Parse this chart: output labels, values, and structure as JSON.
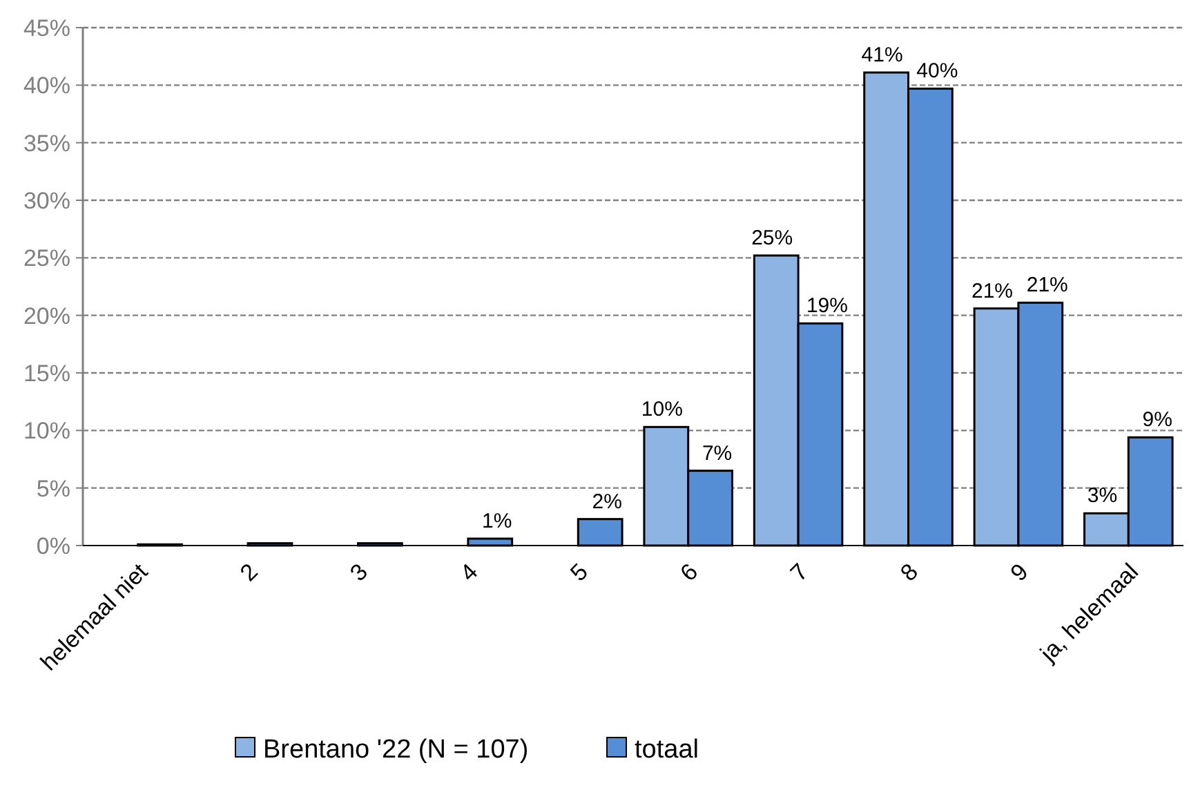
{
  "chart_data": {
    "type": "bar",
    "categories": [
      "helemaal niet",
      "2",
      "3",
      "4",
      "5",
      "6",
      "7",
      "8",
      "9",
      "ja, helemaal"
    ],
    "series": [
      {
        "name": "Brentano '22 (N = 107)",
        "color": "#8eb4e3",
        "values": [
          0,
          0,
          0,
          0,
          0,
          10.3,
          25.2,
          41.1,
          20.6,
          2.8
        ],
        "value_labels": [
          null,
          null,
          null,
          null,
          null,
          "10%",
          "25%",
          "41%",
          "21%",
          "3%"
        ]
      },
      {
        "name": "totaal",
        "color": "#558ed5",
        "values": [
          0.1,
          0.2,
          0.2,
          0.6,
          2.3,
          6.5,
          19.3,
          39.7,
          21.1,
          9.4
        ],
        "value_labels": [
          null,
          null,
          null,
          "1%",
          "2%",
          "7%",
          "19%",
          "40%",
          "21%",
          "9%"
        ]
      }
    ],
    "ylim": [
      0,
      45
    ],
    "yticks": [
      {
        "value": 0,
        "label": "0%"
      },
      {
        "value": 5,
        "label": "5%"
      },
      {
        "value": 10,
        "label": "10%"
      },
      {
        "value": 15,
        "label": "15%"
      },
      {
        "value": 20,
        "label": "20%"
      },
      {
        "value": 25,
        "label": "25%"
      },
      {
        "value": 30,
        "label": "30%"
      },
      {
        "value": 35,
        "label": "35%"
      },
      {
        "value": 40,
        "label": "40%"
      },
      {
        "value": 45,
        "label": "45%"
      }
    ],
    "grid": "y",
    "legend": "bottom"
  }
}
